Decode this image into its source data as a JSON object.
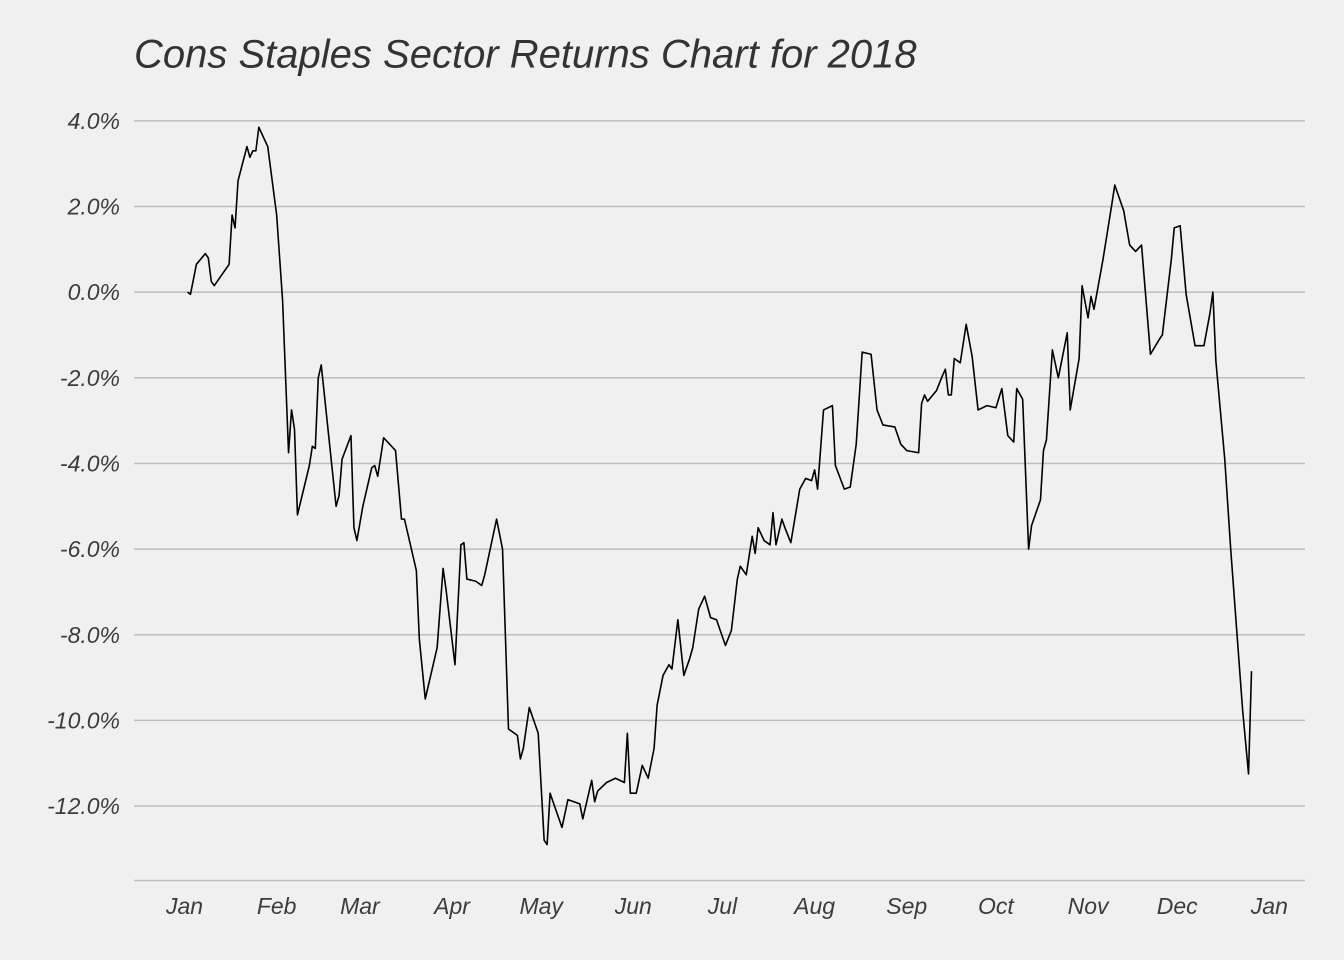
{
  "chart_data": {
    "type": "line",
    "title": "Cons Staples Sector Returns Chart for 2018",
    "color": "#000000",
    "grid": true,
    "xlim": [
      -17,
      377
    ],
    "xticks": [
      {
        "value": 0,
        "label": "Jan"
      },
      {
        "value": 31,
        "label": "Feb"
      },
      {
        "value": 59,
        "label": "Mar"
      },
      {
        "value": 90,
        "label": "Apr"
      },
      {
        "value": 120,
        "label": "May"
      },
      {
        "value": 151,
        "label": "Jun"
      },
      {
        "value": 181,
        "label": "Jul"
      },
      {
        "value": 212,
        "label": "Aug"
      },
      {
        "value": 243,
        "label": "Sep"
      },
      {
        "value": 273,
        "label": "Oct"
      },
      {
        "value": 304,
        "label": "Nov"
      },
      {
        "value": 334,
        "label": "Dec"
      },
      {
        "value": 365,
        "label": "Jan"
      }
    ],
    "ylim": [
      -13.75,
      4.3
    ],
    "yticks": [
      {
        "value": 4,
        "label": "4.0%"
      },
      {
        "value": 2,
        "label": "2.0%"
      },
      {
        "value": 0,
        "label": "0.0%"
      },
      {
        "value": -2,
        "label": "-2.0%"
      },
      {
        "value": -4,
        "label": "-4.0%"
      },
      {
        "value": -6,
        "label": "-6.0%"
      },
      {
        "value": -8,
        "label": "-8.0%"
      },
      {
        "value": -10,
        "label": "-10.0%"
      },
      {
        "value": -12,
        "label": "-12.0%"
      }
    ],
    "x": [
      1,
      2,
      4,
      7,
      8,
      9,
      10,
      15,
      16,
      17,
      18,
      21,
      22,
      23,
      24,
      25,
      28,
      31,
      33,
      35,
      36,
      37,
      38,
      42,
      43,
      44,
      45,
      46,
      51,
      52,
      53,
      56,
      57,
      58,
      60,
      63,
      64,
      65,
      67,
      71,
      73,
      74,
      78,
      79,
      81,
      85,
      87,
      88,
      91,
      93,
      94,
      95,
      98,
      100,
      101,
      105,
      107,
      109,
      112,
      113,
      114,
      116,
      119,
      121,
      122,
      123,
      127,
      129,
      133,
      134,
      137,
      138,
      139,
      142,
      145,
      148,
      149,
      150,
      152,
      154,
      156,
      158,
      159,
      161,
      163,
      164,
      166,
      168,
      170,
      171,
      173,
      175,
      177,
      179,
      182,
      184,
      186,
      187,
      189,
      191,
      192,
      193,
      195,
      197,
      198,
      199,
      201,
      202,
      204,
      207,
      209,
      211,
      212,
      213,
      215,
      218,
      219,
      222,
      224,
      226,
      228,
      231,
      233,
      235,
      239,
      241,
      243,
      247,
      248,
      249,
      250,
      253,
      255,
      256,
      257,
      258,
      259,
      261,
      263,
      265,
      267,
      270,
      273,
      275,
      277,
      279,
      280,
      282,
      284,
      285,
      288,
      289,
      290,
      292,
      294,
      297,
      298,
      301,
      302,
      304,
      305,
      306,
      309,
      312,
      313,
      316,
      318,
      320,
      322,
      325,
      328,
      329,
      332,
      333,
      335,
      337,
      340,
      343,
      345,
      346,
      347,
      350,
      352,
      356,
      358,
      359
    ],
    "values": [
      0.0,
      -0.05,
      0.65,
      0.9,
      0.8,
      0.25,
      0.15,
      0.65,
      1.8,
      1.5,
      2.6,
      3.4,
      3.15,
      3.3,
      3.3,
      3.85,
      3.4,
      1.8,
      -0.2,
      -3.75,
      -2.75,
      -3.2,
      -5.2,
      -4.05,
      -3.6,
      -3.65,
      -2.0,
      -1.7,
      -5.0,
      -4.75,
      -3.9,
      -3.35,
      -5.5,
      -5.8,
      -5.0,
      -4.1,
      -4.05,
      -4.3,
      -3.4,
      -3.7,
      -5.3,
      -5.3,
      -6.5,
      -8.1,
      -9.5,
      -8.3,
      -6.45,
      -6.95,
      -8.7,
      -5.9,
      -5.85,
      -6.7,
      -6.75,
      -6.85,
      -6.6,
      -5.3,
      -6.0,
      -10.2,
      -10.35,
      -10.9,
      -10.65,
      -9.7,
      -10.3,
      -12.8,
      -12.9,
      -11.7,
      -12.5,
      -11.85,
      -11.95,
      -12.3,
      -11.4,
      -11.9,
      -11.65,
      -11.45,
      -11.35,
      -11.45,
      -10.3,
      -11.7,
      -11.7,
      -11.05,
      -11.35,
      -10.65,
      -9.65,
      -8.95,
      -8.7,
      -8.8,
      -7.65,
      -8.95,
      -8.55,
      -8.3,
      -7.4,
      -7.1,
      -7.6,
      -7.65,
      -8.25,
      -7.9,
      -6.7,
      -6.4,
      -6.6,
      -5.7,
      -6.1,
      -5.5,
      -5.8,
      -5.9,
      -5.15,
      -5.9,
      -5.3,
      -5.5,
      -5.85,
      -4.6,
      -4.35,
      -4.4,
      -4.15,
      -4.6,
      -2.75,
      -2.65,
      -4.05,
      -4.6,
      -4.55,
      -3.55,
      -1.4,
      -1.45,
      -2.75,
      -3.1,
      -3.15,
      -3.55,
      -3.7,
      -3.75,
      -2.6,
      -2.4,
      -2.55,
      -2.3,
      -1.95,
      -1.8,
      -2.4,
      -2.4,
      -1.55,
      -1.65,
      -0.75,
      -1.5,
      -2.75,
      -2.65,
      -2.7,
      -2.25,
      -3.35,
      -3.5,
      -2.25,
      -2.5,
      -6.0,
      -5.45,
      -4.85,
      -3.7,
      -3.45,
      -1.35,
      -2.0,
      -0.95,
      -2.75,
      -1.55,
      0.15,
      -0.6,
      -0.1,
      -0.4,
      0.75,
      2.05,
      2.5,
      1.9,
      1.1,
      0.95,
      1.1,
      -1.45,
      -1.1,
      -1.0,
      0.75,
      1.5,
      1.55,
      -0.05,
      -1.25,
      -1.25,
      -0.5,
      0.0,
      -1.6,
      -3.9,
      -6.0,
      -9.75,
      -11.25,
      -8.85
    ]
  }
}
